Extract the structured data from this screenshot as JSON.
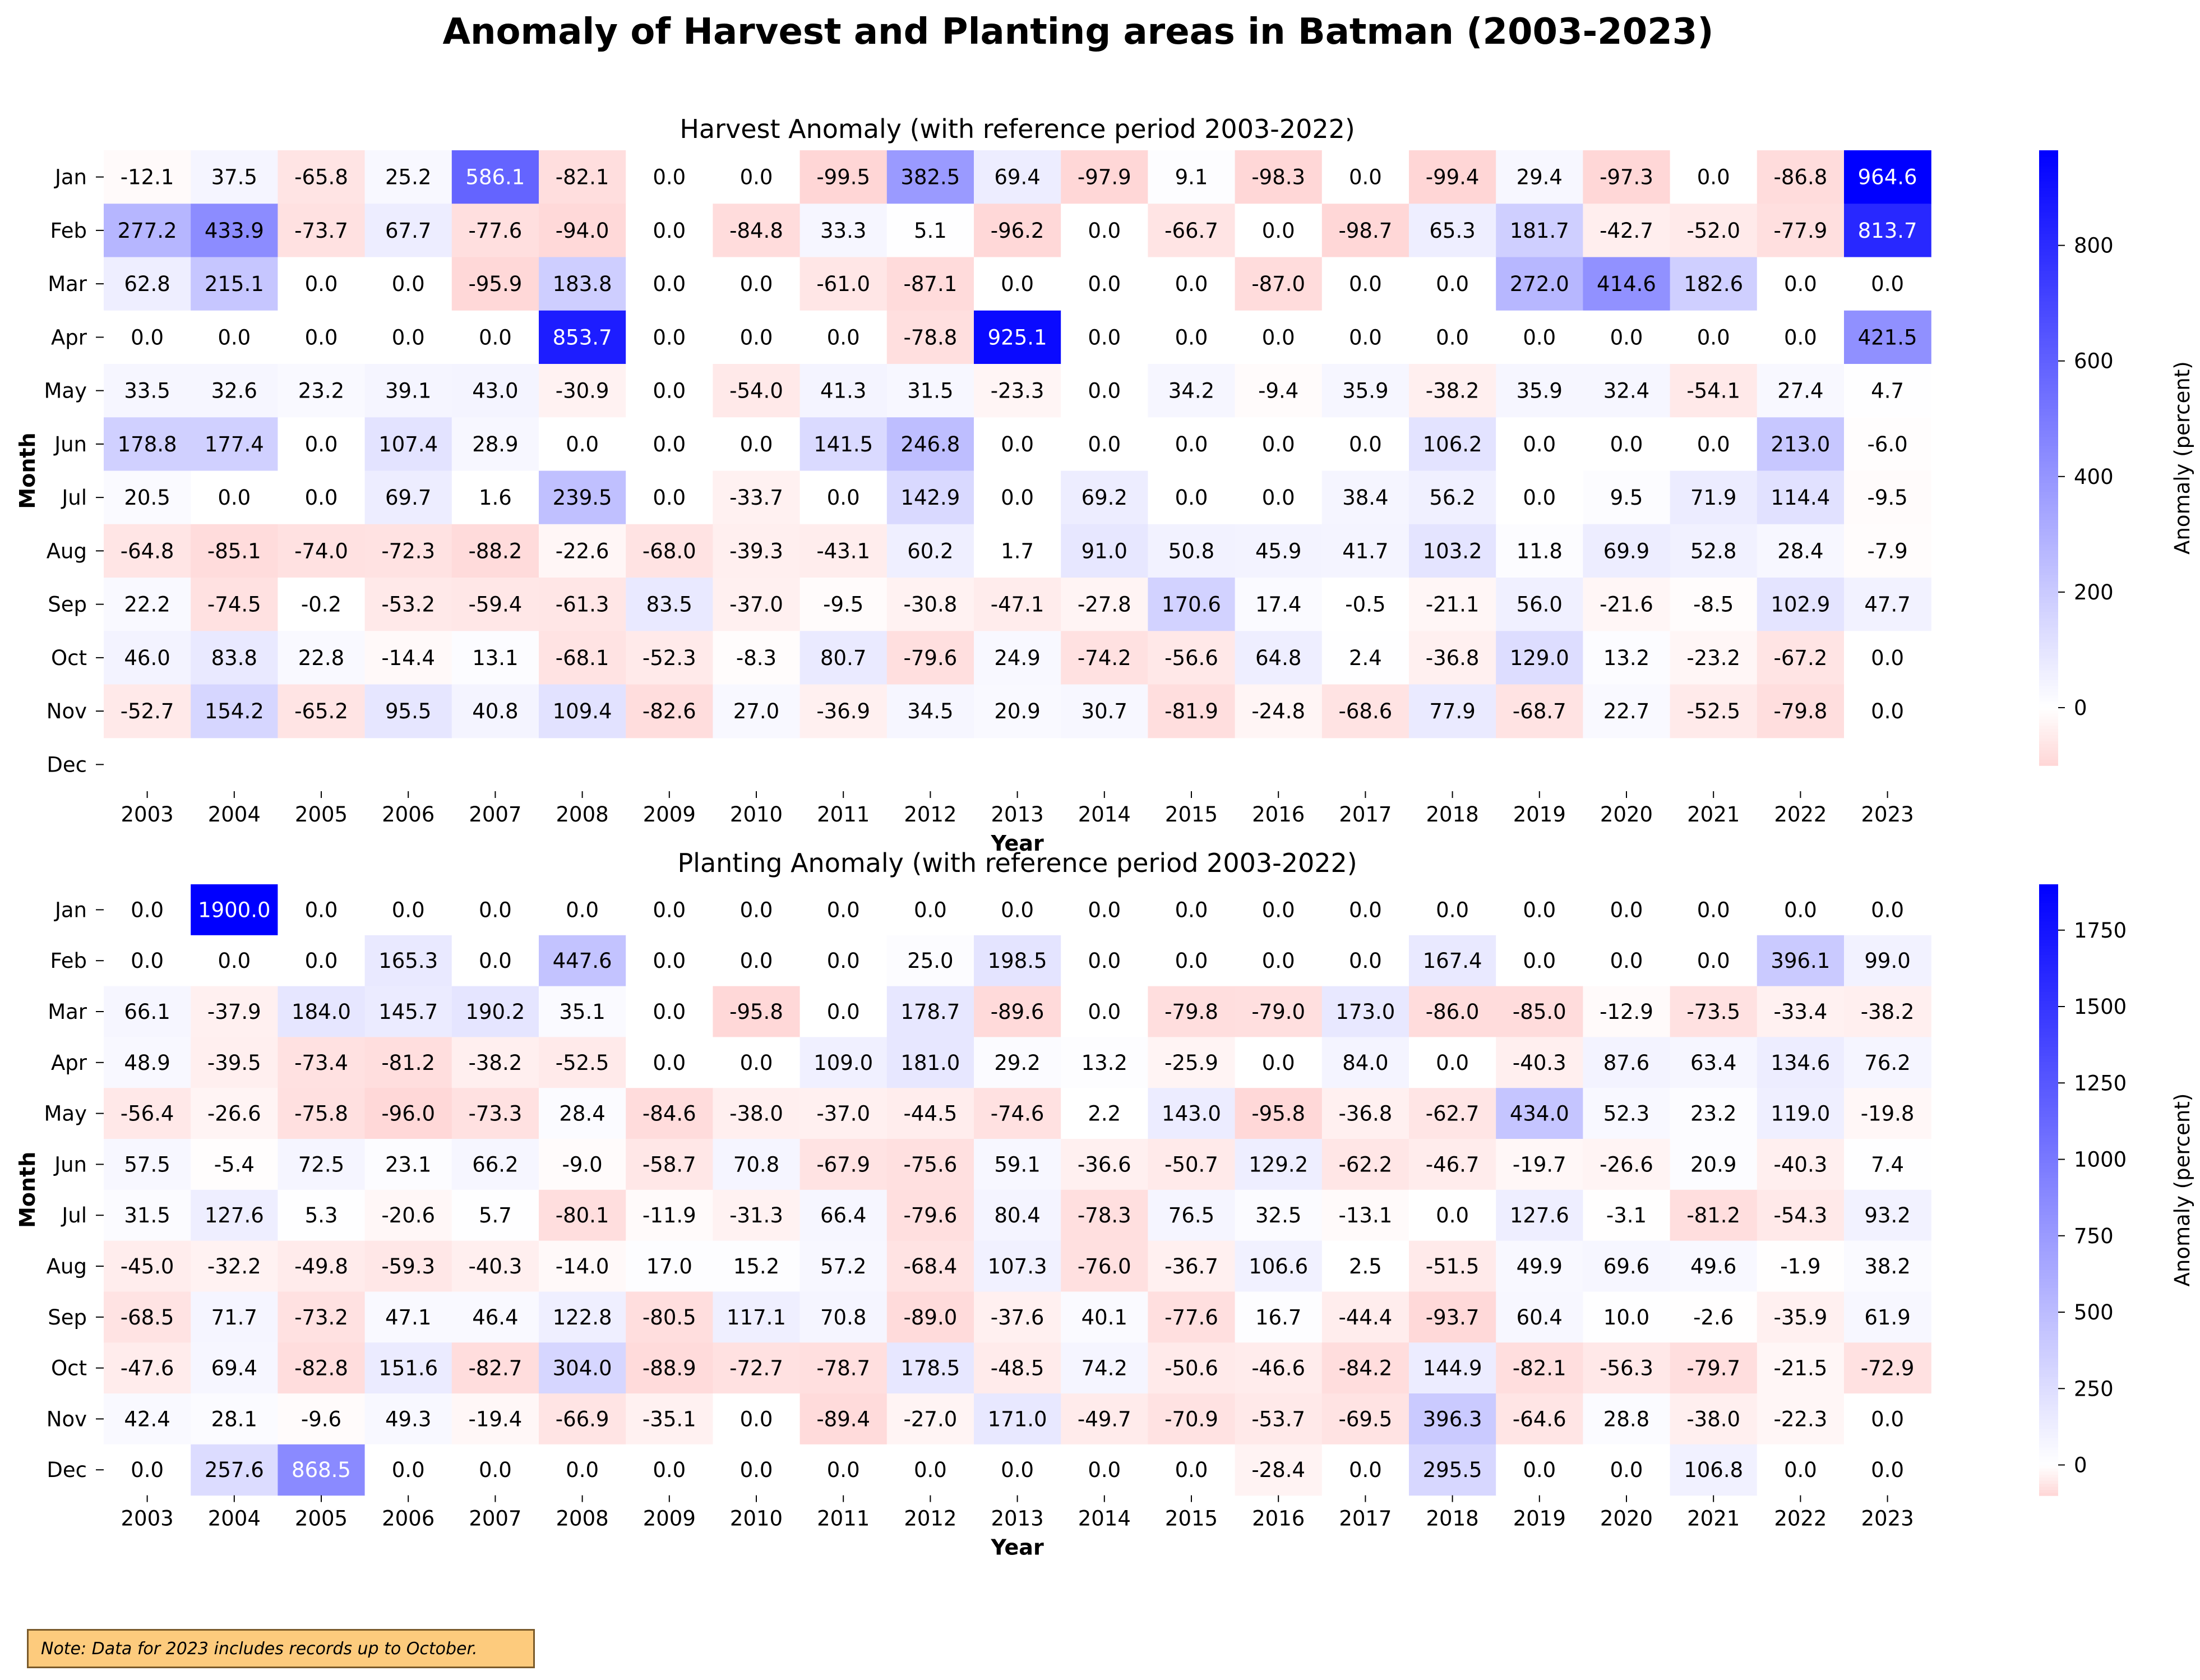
{
  "figure": {
    "suptitle": "Anomaly of Harvest and Planting areas in Batman (2003-2023)",
    "note": "Note: Data for 2023 includes records up to October."
  },
  "colors": {
    "negative": "#ff0000",
    "zero": "#ffffff",
    "positive": "#0000ff",
    "text_dark": "#000000",
    "text_light": "#ffffff"
  },
  "chart_data": [
    {
      "type": "heatmap",
      "title": "Harvest Anomaly (with reference period 2003-2022)",
      "xlabel": "Year",
      "ylabel": "Month",
      "x": [
        "2003",
        "2004",
        "2005",
        "2006",
        "2007",
        "2008",
        "2009",
        "2010",
        "2011",
        "2012",
        "2013",
        "2014",
        "2015",
        "2016",
        "2017",
        "2018",
        "2019",
        "2020",
        "2021",
        "2022",
        "2023"
      ],
      "y": [
        "Jan",
        "Feb",
        "Mar",
        "Apr",
        "May",
        "Jun",
        "Jul",
        "Aug",
        "Sep",
        "Oct",
        "Nov",
        "Dec"
      ],
      "values": [
        [
          -12.1,
          37.5,
          -65.8,
          25.2,
          586.1,
          -82.1,
          0.0,
          0.0,
          -99.5,
          382.5,
          69.4,
          -97.9,
          9.1,
          -98.3,
          0.0,
          -99.4,
          29.4,
          -97.3,
          0.0,
          -86.8,
          964.6
        ],
        [
          277.2,
          433.9,
          -73.7,
          67.7,
          -77.6,
          -94.0,
          0.0,
          -84.8,
          33.3,
          5.1,
          -96.2,
          0.0,
          -66.7,
          0.0,
          -98.7,
          65.3,
          181.7,
          -42.7,
          -52.0,
          -77.9,
          813.7
        ],
        [
          62.8,
          215.1,
          0.0,
          0.0,
          -95.9,
          183.8,
          0.0,
          0.0,
          -61.0,
          -87.1,
          0.0,
          0.0,
          0.0,
          -87.0,
          0.0,
          0.0,
          272.0,
          414.6,
          182.6,
          0.0,
          0.0
        ],
        [
          0.0,
          0.0,
          0.0,
          0.0,
          0.0,
          853.7,
          0.0,
          0.0,
          0.0,
          -78.8,
          925.1,
          0.0,
          0.0,
          0.0,
          0.0,
          0.0,
          0.0,
          0.0,
          0.0,
          0.0,
          421.5
        ],
        [
          33.5,
          32.6,
          23.2,
          39.1,
          43.0,
          -30.9,
          0.0,
          -54.0,
          41.3,
          31.5,
          -23.3,
          0.0,
          34.2,
          -9.4,
          35.9,
          -38.2,
          35.9,
          32.4,
          -54.1,
          27.4,
          4.7
        ],
        [
          178.8,
          177.4,
          0.0,
          107.4,
          28.9,
          0.0,
          0.0,
          0.0,
          141.5,
          246.8,
          0.0,
          0.0,
          0.0,
          0.0,
          0.0,
          106.2,
          0.0,
          0.0,
          0.0,
          213.0,
          -6.0
        ],
        [
          20.5,
          0.0,
          0.0,
          69.7,
          1.6,
          239.5,
          0.0,
          -33.7,
          0.0,
          142.9,
          0.0,
          69.2,
          0.0,
          0.0,
          38.4,
          56.2,
          0.0,
          9.5,
          71.9,
          114.4,
          -9.5
        ],
        [
          -64.8,
          -85.1,
          -74.0,
          -72.3,
          -88.2,
          -22.6,
          -68.0,
          -39.3,
          -43.1,
          60.2,
          1.7,
          91.0,
          50.8,
          45.9,
          41.7,
          103.2,
          11.8,
          69.9,
          52.8,
          28.4,
          -7.9
        ],
        [
          22.2,
          -74.5,
          -0.2,
          -53.2,
          -59.4,
          -61.3,
          83.5,
          -37.0,
          -9.5,
          -30.8,
          -47.1,
          -27.8,
          170.6,
          17.4,
          -0.5,
          -21.1,
          56.0,
          -21.6,
          -8.5,
          102.9,
          47.7
        ],
        [
          46.0,
          83.8,
          22.8,
          -14.4,
          13.1,
          -68.1,
          -52.3,
          -8.3,
          80.7,
          -79.6,
          24.9,
          -74.2,
          -56.6,
          64.8,
          2.4,
          -36.8,
          129.0,
          13.2,
          -23.2,
          -67.2,
          0.0
        ],
        [
          -52.7,
          154.2,
          -65.2,
          95.5,
          40.8,
          109.4,
          -82.6,
          27.0,
          -36.9,
          34.5,
          20.9,
          30.7,
          -81.9,
          -24.8,
          -68.6,
          77.9,
          -68.7,
          22.7,
          -52.5,
          -79.8,
          0.0
        ],
        [
          null,
          null,
          null,
          null,
          null,
          null,
          null,
          null,
          null,
          null,
          null,
          null,
          null,
          null,
          null,
          null,
          null,
          null,
          null,
          null,
          null
        ]
      ],
      "colorbar": {
        "label": "Anomaly (percent)",
        "vmin": -100,
        "vmax": 964.6,
        "ticks": [
          0,
          200,
          400,
          600,
          800
        ],
        "tick_labels": [
          "0",
          "200",
          "400",
          "600",
          "800"
        ]
      }
    },
    {
      "type": "heatmap",
      "title": "Planting Anomaly (with reference period 2003-2022)",
      "xlabel": "Year",
      "ylabel": "Month",
      "x": [
        "2003",
        "2004",
        "2005",
        "2006",
        "2007",
        "2008",
        "2009",
        "2010",
        "2011",
        "2012",
        "2013",
        "2014",
        "2015",
        "2016",
        "2017",
        "2018",
        "2019",
        "2020",
        "2021",
        "2022",
        "2023"
      ],
      "y": [
        "Jan",
        "Feb",
        "Mar",
        "Apr",
        "May",
        "Jun",
        "Jul",
        "Aug",
        "Sep",
        "Oct",
        "Nov",
        "Dec"
      ],
      "values": [
        [
          0.0,
          1900.0,
          0.0,
          0.0,
          0.0,
          0.0,
          0.0,
          0.0,
          0.0,
          0.0,
          0.0,
          0.0,
          0.0,
          0.0,
          0.0,
          0.0,
          0.0,
          0.0,
          0.0,
          0.0,
          0.0
        ],
        [
          0.0,
          0.0,
          0.0,
          165.3,
          0.0,
          447.6,
          0.0,
          0.0,
          0.0,
          25.0,
          198.5,
          0.0,
          0.0,
          0.0,
          0.0,
          167.4,
          0.0,
          0.0,
          0.0,
          396.1,
          99.0
        ],
        [
          66.1,
          -37.9,
          184.0,
          145.7,
          190.2,
          35.1,
          0.0,
          -95.8,
          0.0,
          178.7,
          -89.6,
          0.0,
          -79.8,
          -79.0,
          173.0,
          -86.0,
          -85.0,
          -12.9,
          -73.5,
          -33.4,
          -38.2
        ],
        [
          48.9,
          -39.5,
          -73.4,
          -81.2,
          -38.2,
          -52.5,
          0.0,
          0.0,
          109.0,
          181.0,
          29.2,
          13.2,
          -25.9,
          0.0,
          84.0,
          0.0,
          -40.3,
          87.6,
          63.4,
          134.6,
          76.2
        ],
        [
          -56.4,
          -26.6,
          -75.8,
          -96.0,
          -73.3,
          28.4,
          -84.6,
          -38.0,
          -37.0,
          -44.5,
          -74.6,
          2.2,
          143.0,
          -95.8,
          -36.8,
          -62.7,
          434.0,
          52.3,
          23.2,
          119.0,
          -19.8
        ],
        [
          57.5,
          -5.4,
          72.5,
          23.1,
          66.2,
          -9.0,
          -58.7,
          70.8,
          -67.9,
          -75.6,
          59.1,
          -36.6,
          -50.7,
          129.2,
          -62.2,
          -46.7,
          -19.7,
          -26.6,
          20.9,
          -40.3,
          7.4
        ],
        [
          31.5,
          127.6,
          5.3,
          -20.6,
          5.7,
          -80.1,
          -11.9,
          -31.3,
          66.4,
          -79.6,
          80.4,
          -78.3,
          76.5,
          32.5,
          -13.1,
          0.0,
          127.6,
          -3.1,
          -81.2,
          -54.3,
          93.2
        ],
        [
          -45.0,
          -32.2,
          -49.8,
          -59.3,
          -40.3,
          -14.0,
          17.0,
          15.2,
          57.2,
          -68.4,
          107.3,
          -76.0,
          -36.7,
          106.6,
          2.5,
          -51.5,
          49.9,
          69.6,
          49.6,
          -1.9,
          38.2
        ],
        [
          -68.5,
          71.7,
          -73.2,
          47.1,
          46.4,
          122.8,
          -80.5,
          117.1,
          70.8,
          -89.0,
          -37.6,
          40.1,
          -77.6,
          16.7,
          -44.4,
          -93.7,
          60.4,
          10.0,
          -2.6,
          -35.9,
          61.9
        ],
        [
          -47.6,
          69.4,
          -82.8,
          151.6,
          -82.7,
          304.0,
          -88.9,
          -72.7,
          -78.7,
          178.5,
          -48.5,
          74.2,
          -50.6,
          -46.6,
          -84.2,
          144.9,
          -82.1,
          -56.3,
          -79.7,
          -21.5,
          -72.9
        ],
        [
          42.4,
          28.1,
          -9.6,
          49.3,
          -19.4,
          -66.9,
          -35.1,
          0.0,
          -89.4,
          -27.0,
          171.0,
          -49.7,
          -70.9,
          -53.7,
          -69.5,
          396.3,
          -64.6,
          28.8,
          -38.0,
          -22.3,
          0.0
        ],
        [
          0.0,
          257.6,
          868.5,
          0.0,
          0.0,
          0.0,
          0.0,
          0.0,
          0.0,
          0.0,
          0.0,
          0.0,
          0.0,
          -28.4,
          0.0,
          295.5,
          0.0,
          0.0,
          106.8,
          0.0,
          0.0
        ]
      ],
      "colorbar": {
        "label": "Anomaly (percent)",
        "vmin": -100,
        "vmax": 1900,
        "ticks": [
          0,
          250,
          500,
          750,
          1000,
          1250,
          1500,
          1750
        ],
        "tick_labels": [
          "0",
          "250",
          "500",
          "750",
          "1000",
          "1250",
          "1500",
          "1750"
        ]
      }
    }
  ]
}
